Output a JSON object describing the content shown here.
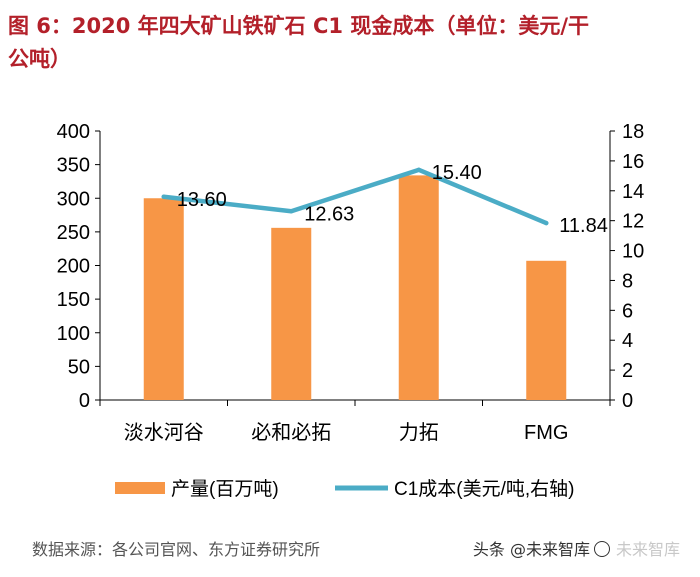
{
  "title_lines": [
    "图 6：2020 年四大矿山铁矿石 C1 现金成本（单位：美元/干",
    "公吨）"
  ],
  "colors": {
    "title": "#b3202a",
    "bar": "#f79646",
    "line": "#4bacc6",
    "axis": "#000000"
  },
  "chart_data": {
    "type": "bar+line",
    "categories": [
      "淡水河谷",
      "必和必拓",
      "力拓",
      "FMG"
    ],
    "series": [
      {
        "name": "产量(百万吨)",
        "type": "bar",
        "axis": "left",
        "values": [
          300,
          256,
          334,
          207
        ]
      },
      {
        "name": "C1成本(美元/吨,右轴)",
        "type": "line",
        "axis": "right",
        "values": [
          13.6,
          12.63,
          15.4,
          11.84
        ],
        "labels": [
          "13.60",
          "12.63",
          "15.40",
          "11.84"
        ]
      }
    ],
    "y_left": {
      "min": 0,
      "max": 400,
      "ticks": [
        0,
        50,
        100,
        150,
        200,
        250,
        300,
        350,
        400
      ]
    },
    "y_right": {
      "min": 0,
      "max": 18,
      "ticks": [
        0,
        2,
        4,
        6,
        8,
        10,
        12,
        14,
        16,
        18
      ]
    },
    "legend": {
      "position": "bottom",
      "items": [
        "产量(百万吨)",
        "C1成本(美元/吨,右轴)"
      ]
    }
  },
  "source": "数据来源：各公司官网、东方证券研究所",
  "watermark": {
    "text": "头条 @未来智库",
    "ghost": "未来智库"
  }
}
